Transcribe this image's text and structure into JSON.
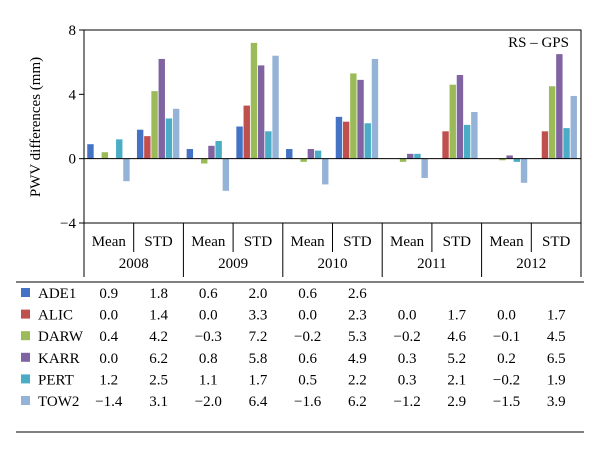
{
  "chart_data": {
    "type": "bar",
    "annotation": "RS – GPS",
    "ylabel": "PWV differences (mm)",
    "ylim": [
      -4,
      8
    ],
    "yticks": [
      -4,
      0,
      4,
      8
    ],
    "ytick_labels": [
      "−4",
      "0",
      "4",
      "8"
    ],
    "years": [
      "2008",
      "2009",
      "2010",
      "2011",
      "2012"
    ],
    "stats": [
      "Mean",
      "STD"
    ],
    "series": [
      {
        "name": "ADE1",
        "color": "#4472c4",
        "values": [
          [
            0.9,
            1.8
          ],
          [
            0.6,
            2.0
          ],
          [
            0.6,
            2.6
          ],
          [
            null,
            null
          ],
          [
            null,
            null
          ]
        ],
        "labels": [
          "0.9",
          "1.8",
          "0.6",
          "2.0",
          "0.6",
          "2.6",
          "",
          "",
          "",
          ""
        ]
      },
      {
        "name": "ALIC",
        "color": "#c0504d",
        "values": [
          [
            0.0,
            1.4
          ],
          [
            0.0,
            3.3
          ],
          [
            0.0,
            2.3
          ],
          [
            0.0,
            1.7
          ],
          [
            0.0,
            1.7
          ]
        ],
        "labels": [
          "0.0",
          "1.4",
          "0.0",
          "3.3",
          "0.0",
          "2.3",
          "0.0",
          "1.7",
          "0.0",
          "1.7"
        ]
      },
      {
        "name": "DARW",
        "color": "#9bbb59",
        "values": [
          [
            0.4,
            4.2
          ],
          [
            -0.3,
            7.2
          ],
          [
            -0.2,
            5.3
          ],
          [
            -0.2,
            4.6
          ],
          [
            -0.1,
            4.5
          ]
        ],
        "labels": [
          "0.4",
          "4.2",
          "−0.3",
          "7.2",
          "−0.2",
          "5.3",
          "−0.2",
          "4.6",
          "−0.1",
          "4.5"
        ]
      },
      {
        "name": "KARR",
        "color": "#8064a2",
        "values": [
          [
            0.0,
            6.2
          ],
          [
            0.8,
            5.8
          ],
          [
            0.6,
            4.9
          ],
          [
            0.3,
            5.2
          ],
          [
            0.2,
            6.5
          ]
        ],
        "labels": [
          "0.0",
          "6.2",
          "0.8",
          "5.8",
          "0.6",
          "4.9",
          "0.3",
          "5.2",
          "0.2",
          "6.5"
        ]
      },
      {
        "name": "PERT",
        "color": "#4bacc6",
        "values": [
          [
            1.2,
            2.5
          ],
          [
            1.1,
            1.7
          ],
          [
            0.5,
            2.2
          ],
          [
            0.3,
            2.1
          ],
          [
            -0.2,
            1.9
          ]
        ],
        "labels": [
          "1.2",
          "2.5",
          "1.1",
          "1.7",
          "0.5",
          "2.2",
          "0.3",
          "2.1",
          "−0.2",
          "1.9"
        ]
      },
      {
        "name": "TOW2",
        "color": "#95b3d7",
        "values": [
          [
            -1.4,
            3.1
          ],
          [
            -2.0,
            6.4
          ],
          [
            -1.6,
            6.2
          ],
          [
            -1.2,
            2.9
          ],
          [
            -1.5,
            3.9
          ]
        ],
        "labels": [
          "−1.4",
          "3.1",
          "−2.0",
          "6.4",
          "−1.6",
          "6.2",
          "−1.2",
          "2.9",
          "−1.5",
          "3.9"
        ]
      }
    ]
  }
}
